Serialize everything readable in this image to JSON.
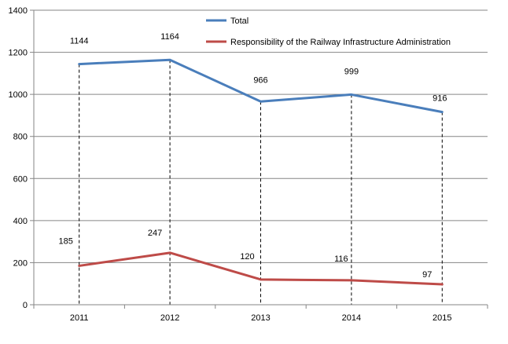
{
  "chart_data": {
    "type": "line",
    "categories": [
      "2011",
      "2012",
      "2013",
      "2014",
      "2015"
    ],
    "series": [
      {
        "name": "Total",
        "values": [
          1144,
          1164,
          966,
          999,
          916
        ],
        "color": "#4a7ebb"
      },
      {
        "name": "Responsibility of the Railway Infrastructure Administration",
        "values": [
          185,
          247,
          120,
          116,
          97
        ],
        "color": "#be4b48"
      }
    ],
    "ylim": [
      0,
      1400
    ],
    "yticks": [
      0,
      200,
      400,
      600,
      800,
      1000,
      1200,
      1400
    ],
    "grid": true,
    "drop_lines": true,
    "legend_position": "top-right",
    "title": "",
    "xlabel": "",
    "ylabel": ""
  }
}
